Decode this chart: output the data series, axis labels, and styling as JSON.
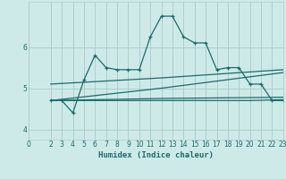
{
  "xlabel": "Humidex (Indice chaleur)",
  "bg_color": "#ceeae8",
  "grid_color": "#aacfce",
  "line_color": "#1a6b6b",
  "xlim": [
    0,
    23
  ],
  "ylim": [
    3.75,
    7.1
  ],
  "yticks": [
    4,
    5,
    6
  ],
  "xticks": [
    0,
    2,
    3,
    4,
    5,
    6,
    7,
    8,
    9,
    10,
    11,
    12,
    13,
    14,
    15,
    16,
    17,
    18,
    19,
    20,
    21,
    22,
    23
  ],
  "line1_x": [
    2,
    3,
    4,
    5,
    6,
    7,
    8,
    9,
    10,
    11,
    12,
    13,
    14,
    15,
    16,
    17,
    18,
    19,
    20,
    21,
    22,
    23
  ],
  "line1_y": [
    4.7,
    4.7,
    4.4,
    5.2,
    5.8,
    5.5,
    5.45,
    5.45,
    5.45,
    6.25,
    6.75,
    6.75,
    6.25,
    6.1,
    6.1,
    5.45,
    5.5,
    5.5,
    5.1,
    5.1,
    4.7,
    4.7
  ],
  "line2_x": [
    2,
    12,
    23
  ],
  "line2_y": [
    5.1,
    5.25,
    5.45
  ],
  "line3_x": [
    2,
    12,
    23
  ],
  "line3_y": [
    4.7,
    4.75,
    4.78
  ],
  "line4_x": [
    2,
    12,
    23
  ],
  "line4_y": [
    4.7,
    5.0,
    5.38
  ],
  "line5_x": [
    2,
    12,
    20,
    23
  ],
  "line5_y": [
    4.7,
    4.7,
    4.7,
    4.72
  ]
}
